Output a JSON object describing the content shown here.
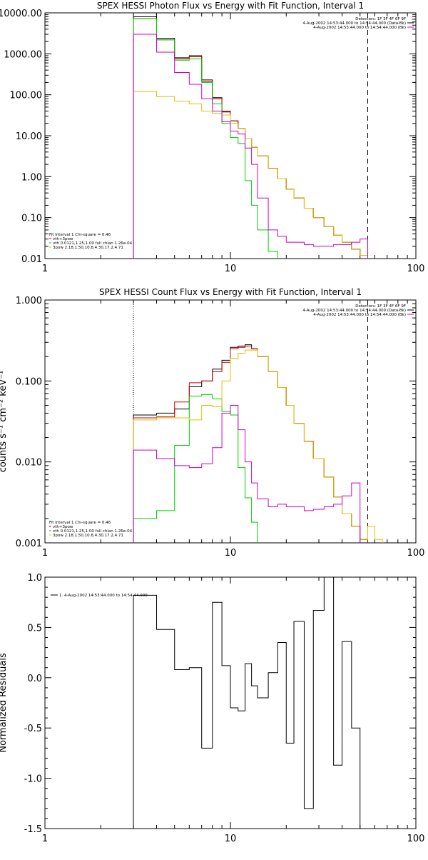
{
  "chart_data": [
    {
      "type": "line",
      "title": "SPEX HESSI Photon Flux vs Energy with Fit Function, Interval 1",
      "xscale": "log",
      "yscale": "log",
      "xlim": [
        1,
        100
      ],
      "ylim": [
        0.01,
        10000
      ],
      "x_ticks": [
        {
          "v": 1,
          "label": "1"
        },
        {
          "v": 10,
          "label": "10"
        },
        {
          "v": 100,
          "label": "100"
        }
      ],
      "y_ticks": [
        {
          "v": 0.01,
          "label": "0.01"
        },
        {
          "v": 0.1,
          "label": "0.10"
        },
        {
          "v": 1,
          "label": "1.00"
        },
        {
          "v": 10,
          "label": "10.00"
        },
        {
          "v": 100,
          "label": "100.00"
        },
        {
          "v": 1000,
          "label": "1000.00"
        },
        {
          "v": 10000,
          "label": "10000.00"
        }
      ],
      "vlines": [
        {
          "x": 3,
          "style": "dotted",
          "color": "#000000"
        },
        {
          "x": 55,
          "style": "dashed",
          "color": "#000000"
        }
      ],
      "header_lines": [
        "Detectors: 1F 3F 4F 6F 9F",
        "4-Aug-2002 14:53:44.000 to 14:54:44.000 (Data-Bk)",
        "4-Aug-2002 14:53:44.000 to 14:54:44.000 (Bk)"
      ],
      "header_swatches": [
        "#000000",
        "#cc00cc"
      ],
      "legend_lines": [
        "Fit Interval 1   Chi-square = 0.46",
        "vth+3pow",
        "vth 0.0121,1.25,1.00  full chian 1.26e-04",
        "3pow 2.18,1.50,10.8,4.30,17.2,4.71"
      ],
      "legend_swatches": [
        null,
        "#cc0000",
        "#00cc00",
        "#e0c000"
      ],
      "bin_edges": [
        3,
        4,
        5,
        6,
        7,
        8,
        9,
        10,
        11,
        12,
        13,
        14,
        16,
        18,
        20,
        22,
        25,
        28,
        32,
        36,
        40,
        45,
        50,
        55
      ],
      "series": [
        {
          "name": "4-Aug-2002 14:53:44.000 to 14:54:44.000 (Data-Bk)",
          "color": "#000000",
          "values": [
            8000,
            2400,
            800,
            900,
            230,
            85,
            38,
            23,
            15,
            8.5,
            5.2,
            3.2,
            1.6,
            0.9,
            0.5,
            0.3,
            0.17,
            0.1,
            0.06,
            0.037,
            0.025,
            0.017,
            0.012
          ]
        },
        {
          "name": "vth+3pow",
          "color": "#cc0000",
          "values": [
            7200,
            2200,
            750,
            850,
            210,
            80,
            40,
            23,
            15,
            8.5,
            5.2,
            3.2,
            1.6,
            0.9,
            0.5,
            0.3,
            0.17,
            0.1,
            0.06,
            0.037,
            0.025,
            0.017,
            0.012
          ]
        },
        {
          "name": "vth",
          "color": "#00cc00",
          "values": [
            7200,
            2200,
            700,
            750,
            200,
            60,
            20,
            9,
            6.5,
            0.8,
            0.2,
            0.05,
            0.015,
            0.008,
            0.008,
            0.008,
            0.008,
            0.008,
            0.008,
            0.008,
            0.008,
            0.008,
            0.008
          ]
        },
        {
          "name": "3pow",
          "color": "#e0c000",
          "values": [
            120,
            90,
            70,
            60,
            40,
            35,
            32,
            20,
            15,
            8.5,
            5.2,
            3.2,
            1.6,
            0.9,
            0.5,
            0.3,
            0.17,
            0.1,
            0.06,
            0.037,
            0.025,
            0.017,
            0.012
          ]
        },
        {
          "name": "4-Aug-2002 14:53:44.000 to 14:54:44.000 (Bk)",
          "color": "#cc00cc",
          "values": [
            3000,
            1100,
            350,
            180,
            80,
            40,
            22,
            13,
            11,
            5,
            2,
            0.3,
            0.05,
            0.035,
            0.025,
            0.025,
            0.022,
            0.02,
            0.02,
            0.022,
            0.022,
            0.025,
            0.03
          ]
        }
      ]
    },
    {
      "type": "line",
      "title": "SPEX HESSI Count Flux vs Energy with Fit Function, Interval 1",
      "ylabel": "counts s⁻¹ cm⁻² keV⁻¹",
      "xscale": "log",
      "yscale": "log",
      "xlim": [
        1,
        100
      ],
      "ylim": [
        0.001,
        1
      ],
      "x_ticks": [
        {
          "v": 1,
          "label": "1"
        },
        {
          "v": 10,
          "label": "10"
        },
        {
          "v": 100,
          "label": "100"
        }
      ],
      "y_ticks": [
        {
          "v": 0.001,
          "label": "0.001"
        },
        {
          "v": 0.01,
          "label": "0.010"
        },
        {
          "v": 0.1,
          "label": "0.100"
        },
        {
          "v": 1,
          "label": "1.000"
        }
      ],
      "vlines": [
        {
          "x": 3,
          "style": "dotted",
          "color": "#000000"
        },
        {
          "x": 55,
          "style": "dashed",
          "color": "#000000"
        }
      ],
      "header_lines": [
        "Detectors: 1F 3F 4F 6F 9F",
        "4-Aug-2002 14:53:44.000 to 14:54:44.000 (Data-Bk)",
        "4-Aug-2002 14:53:44.000 to 14:54:44.000 (Bk)"
      ],
      "header_swatches": [
        "#000000",
        "#cc00cc"
      ],
      "legend_lines": [
        "Fit Interval 1   Chi-square = 0.46",
        "vth+3pow",
        "vth 0.0121,1.25,1.00  full chian 1.26e-04",
        "3pow 2.18,1.50,10.8,4.30,17.2,4.71"
      ],
      "legend_swatches": [
        null,
        "#cc0000",
        "#00cc00",
        "#e0c000"
      ],
      "bin_edges": [
        3,
        4,
        5,
        6,
        7,
        8,
        9,
        10,
        11,
        12,
        13,
        14,
        16,
        18,
        20,
        22,
        25,
        28,
        32,
        36,
        40,
        45,
        50,
        55,
        60,
        66
      ],
      "series": [
        {
          "name": "4-Aug-2002 14:53:44.000 to 14:54:44.000 (Data-Bk)",
          "color": "#000000",
          "values": [
            0.038,
            0.04,
            0.045,
            0.085,
            0.1,
            0.14,
            0.18,
            0.26,
            0.27,
            0.28,
            0.25,
            0.2,
            0.13,
            0.083,
            0.05,
            0.03,
            0.018,
            0.011,
            0.0065,
            0.0037,
            0.0023,
            0.0016,
            0.0011,
            null,
            null
          ]
        },
        {
          "name": "vth+3pow",
          "color": "#cc0000",
          "values": [
            0.035,
            0.036,
            0.055,
            0.095,
            0.1,
            0.13,
            0.17,
            0.25,
            0.26,
            0.27,
            0.25,
            0.2,
            0.13,
            0.083,
            0.05,
            0.03,
            0.018,
            0.011,
            0.0065,
            0.0037,
            0.0023,
            0.0016,
            0.0011,
            null,
            null
          ]
        },
        {
          "name": "vth",
          "color": "#00cc00",
          "values": [
            0.002,
            0.0025,
            0.016,
            0.065,
            0.068,
            0.06,
            0.042,
            0.038,
            0.0085,
            0.0036,
            0.0018,
            0.0008,
            null,
            null,
            null,
            null,
            null,
            null,
            null,
            null,
            null,
            null,
            null,
            null,
            null
          ]
        },
        {
          "name": "3pow",
          "color": "#e0c000",
          "values": [
            0.033,
            0.035,
            0.035,
            0.033,
            0.05,
            0.048,
            0.1,
            0.19,
            0.22,
            0.24,
            0.24,
            0.2,
            0.13,
            0.083,
            0.05,
            0.03,
            0.018,
            0.011,
            0.0065,
            0.0037,
            0.0023,
            0.0016,
            0.0011,
            0.0016,
            0.0011
          ]
        },
        {
          "name": "4-Aug-2002 14:53:44.000 to 14:54:44.000 (Bk)",
          "color": "#cc00cc",
          "values": [
            0.014,
            0.011,
            0.009,
            0.0085,
            0.0095,
            0.015,
            0.04,
            0.05,
            0.025,
            0.01,
            0.0055,
            0.0035,
            0.0028,
            0.003,
            0.0028,
            0.0028,
            0.0025,
            0.0026,
            0.0028,
            0.003,
            0.0038,
            0.0055,
            0.0006,
            null,
            null
          ]
        }
      ]
    },
    {
      "type": "line",
      "title": "",
      "ylabel": "Normalized Residuals",
      "xscale": "log",
      "yscale": "linear",
      "xlim": [
        1,
        100
      ],
      "ylim": [
        -1.5,
        1.0
      ],
      "x_ticks": [
        {
          "v": 1,
          "label": "1"
        },
        {
          "v": 10,
          "label": "10"
        },
        {
          "v": 100,
          "label": "100"
        }
      ],
      "y_ticks": [
        {
          "v": -1.5,
          "label": "-1.5"
        },
        {
          "v": -1.0,
          "label": "-1.0"
        },
        {
          "v": -0.5,
          "label": "-0.5"
        },
        {
          "v": 0.0,
          "label": "0.0"
        },
        {
          "v": 0.5,
          "label": "0.5"
        },
        {
          "v": 1.0,
          "label": "1.0"
        }
      ],
      "vlines": [],
      "header_lines": [],
      "header_swatches": [],
      "legend_lines": [
        "1.  4-Aug-2002 14:53:44.000 to 14:54:44.000"
      ],
      "legend_swatches": [
        "#000000"
      ],
      "legend_position": "top-left",
      "bin_edges": [
        3,
        4,
        5,
        6,
        7,
        8,
        9,
        10,
        11,
        12,
        13,
        14,
        16,
        18,
        20,
        22,
        25,
        28,
        32,
        36,
        40,
        45,
        50,
        55
      ],
      "series": [
        {
          "name": "1.  4-Aug-2002 14:53:44.000 to 14:54:44.000",
          "color": "#000000",
          "values": [
            0.82,
            0.48,
            0.08,
            0.1,
            -0.7,
            0.75,
            0.12,
            -0.3,
            -0.33,
            0.14,
            -0.08,
            -0.2,
            0.05,
            0.35,
            -0.65,
            0.56,
            -1.3,
            0.67,
            1.0,
            -0.87,
            0.36,
            -0.5,
            -1.6
          ]
        }
      ]
    }
  ]
}
